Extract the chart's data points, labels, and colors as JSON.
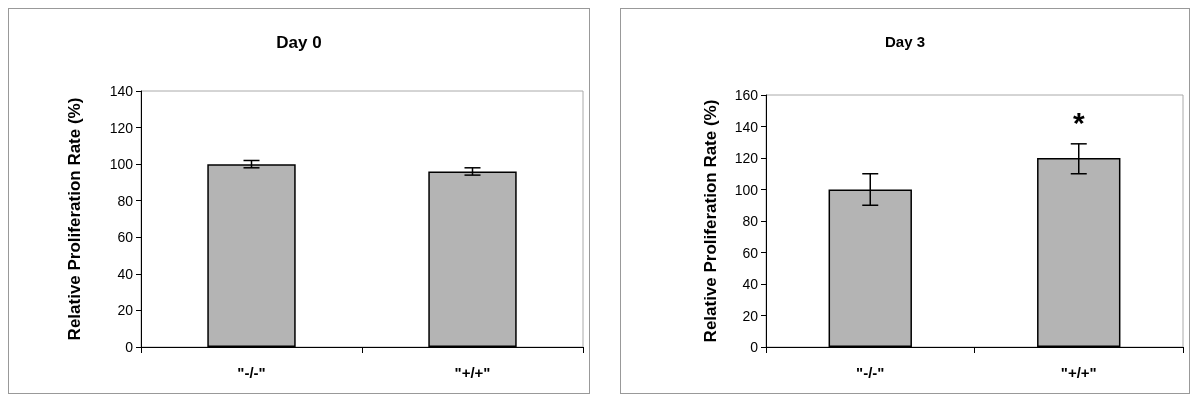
{
  "chart_data": [
    {
      "type": "bar",
      "title": "Day 0",
      "ylabel": "Relative Proliferation Rate (%)",
      "categories": [
        "\"-/-\"",
        "\"+/+\""
      ],
      "series": [
        {
          "color": "#b4b4b4",
          "values": [
            100,
            96
          ],
          "errors": [
            2,
            2
          ]
        }
      ],
      "ylim": [
        0,
        140
      ],
      "yticks": [
        0,
        20,
        40,
        60,
        80,
        100,
        120,
        140
      ]
    },
    {
      "type": "bar",
      "title": "Day 3",
      "ylabel": "Relative Proliferation Rate (%)",
      "categories": [
        "\"-/-\"",
        "\"+/+\""
      ],
      "series": [
        {
          "color": "#b4b4b4",
          "values": [
            100,
            120
          ],
          "errors": [
            10,
            [
              110,
              129
            ]
          ]
        }
      ],
      "ylim": [
        0,
        160
      ],
      "yticks": [
        0,
        20,
        40,
        60,
        80,
        100,
        120,
        140,
        160
      ],
      "annotations": [
        "*"
      ]
    }
  ]
}
